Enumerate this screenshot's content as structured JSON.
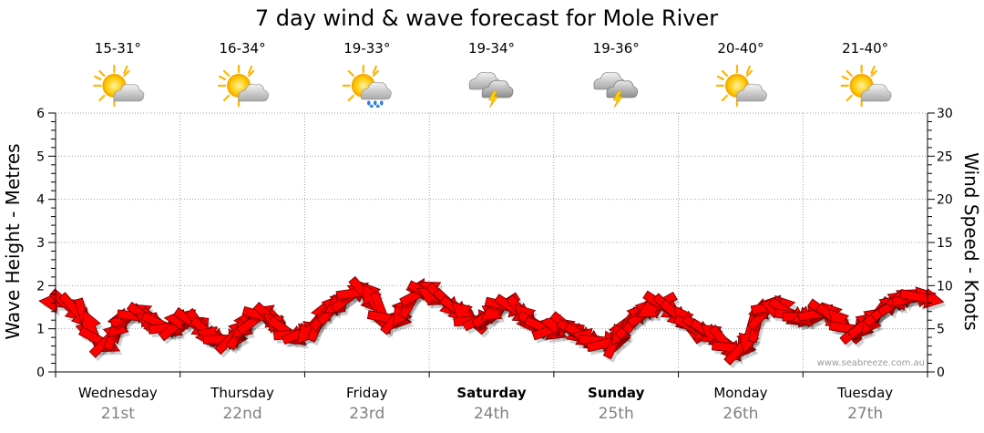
{
  "chart_data": {
    "type": "line",
    "title": "7 day wind & wave forecast for Mole River",
    "ylabel_left": "Wave Height - Metres",
    "ylabel_right": "Wind Speed - Knots",
    "ylim_left": [
      0,
      6
    ],
    "ylim_right": [
      0,
      30
    ],
    "yticks_left": [
      "0",
      "1",
      "2",
      "3",
      "4",
      "5",
      "6"
    ],
    "yticks_right": [
      "0",
      "5",
      "10",
      "15",
      "20",
      "25",
      "30"
    ],
    "watermark": "www.seabreeze.com.au",
    "days": [
      {
        "name": "Wednesday",
        "date": "21st",
        "temp": "15-31°",
        "icon": "partly-cloudy-sun-icon",
        "bold": false
      },
      {
        "name": "Thursday",
        "date": "22nd",
        "temp": "16-34°",
        "icon": "partly-cloudy-sun-icon",
        "bold": false
      },
      {
        "name": "Friday",
        "date": "23rd",
        "temp": "19-33°",
        "icon": "sun-cloud-rain-icon",
        "bold": false
      },
      {
        "name": "Saturday",
        "date": "24th",
        "temp": "19-34°",
        "icon": "thunderstorm-icon",
        "bold": true
      },
      {
        "name": "Sunday",
        "date": "25th",
        "temp": "19-36°",
        "icon": "thunderstorm-icon",
        "bold": true
      },
      {
        "name": "Monday",
        "date": "26th",
        "temp": "20-40°",
        "icon": "partly-cloudy-sun-icon",
        "bold": false
      },
      {
        "name": "Tuesday",
        "date": "27th",
        "temp": "21-40°",
        "icon": "partly-cloudy-sun-icon",
        "bold": false
      }
    ],
    "series": [
      {
        "name": "Wind Speed (knots)",
        "color": "#ff0000",
        "values": [
          8.0,
          7.6,
          7.0,
          6.0,
          4.8,
          3.6,
          3.8,
          5.0,
          5.8,
          6.6,
          6.4,
          6.2,
          5.6,
          5.4,
          5.2,
          5.6,
          6.0,
          5.6,
          5.0,
          4.4,
          4.0,
          3.8,
          4.2,
          5.0,
          5.6,
          6.2,
          6.4,
          6.0,
          5.2,
          4.6,
          4.4,
          4.6,
          5.2,
          6.0,
          7.0,
          7.6,
          8.2,
          8.8,
          9.2,
          8.8,
          8.0,
          6.8,
          6.2,
          6.6,
          7.4,
          8.6,
          9.2,
          9.0,
          8.6,
          8.2,
          7.6,
          7.0,
          6.4,
          6.0,
          6.4,
          7.0,
          7.4,
          7.6,
          7.2,
          6.6,
          6.0,
          5.4,
          5.0,
          5.0,
          5.4,
          5.0,
          4.4,
          4.0,
          3.8,
          3.6,
          3.4,
          4.0,
          5.2,
          6.0,
          6.6,
          7.0,
          7.6,
          7.6,
          7.0,
          6.4,
          5.6,
          5.0,
          4.8,
          4.4,
          4.0,
          3.2,
          2.8,
          3.0,
          4.6,
          6.0,
          7.0,
          7.6,
          7.2,
          6.8,
          6.4,
          6.4,
          6.6,
          6.8,
          6.6,
          6.0,
          5.4,
          5.0,
          5.2,
          5.8,
          6.4,
          7.2,
          7.8,
          8.2,
          8.4,
          8.6,
          8.6
        ]
      }
    ]
  }
}
